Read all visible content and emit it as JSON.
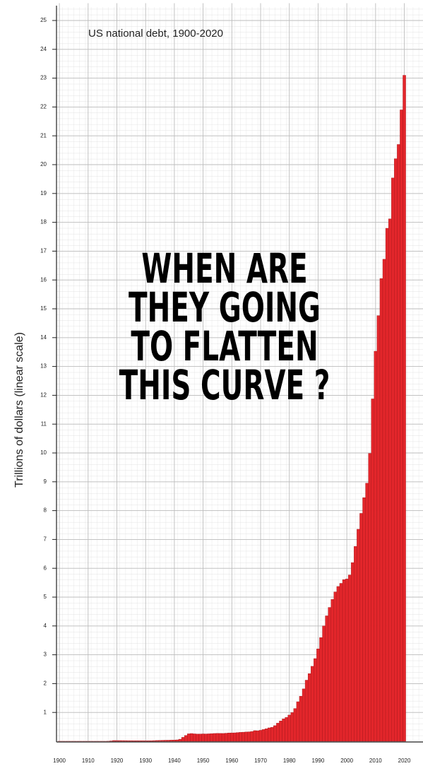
{
  "chart_data": {
    "type": "bar",
    "title": "US national debt, 1900-2020",
    "y_label": "Trillions of dollars (linear scale)",
    "annotation": [
      "WHEN ARE",
      "THEY GOING",
      "TO FLATTEN",
      "THIS CURVE ?"
    ],
    "color": "#e3262b",
    "grid": true,
    "xlim": [
      1899,
      2026.5
    ],
    "ylim": [
      0,
      25.6
    ],
    "xticks": [
      1900,
      1910,
      1920,
      1930,
      1940,
      1950,
      1960,
      1970,
      1980,
      1990,
      2000,
      2010,
      2020
    ],
    "yticks": [
      1,
      2,
      3,
      4,
      5,
      6,
      7,
      8,
      9,
      10,
      11,
      12,
      13,
      14,
      15,
      16,
      17,
      18,
      19,
      20,
      21,
      22,
      23,
      24,
      25
    ],
    "x": [
      1900,
      1901,
      1902,
      1903,
      1904,
      1905,
      1906,
      1907,
      1908,
      1909,
      1910,
      1911,
      1912,
      1913,
      1914,
      1915,
      1916,
      1917,
      1918,
      1919,
      1920,
      1921,
      1922,
      1923,
      1924,
      1925,
      1926,
      1927,
      1928,
      1929,
      1930,
      1931,
      1932,
      1933,
      1934,
      1935,
      1936,
      1937,
      1938,
      1939,
      1940,
      1941,
      1942,
      1943,
      1944,
      1945,
      1946,
      1947,
      1948,
      1949,
      1950,
      1951,
      1952,
      1953,
      1954,
      1955,
      1956,
      1957,
      1958,
      1959,
      1960,
      1961,
      1962,
      1963,
      1964,
      1965,
      1966,
      1967,
      1968,
      1969,
      1970,
      1971,
      1972,
      1973,
      1974,
      1975,
      1976,
      1977,
      1978,
      1979,
      1980,
      1981,
      1982,
      1983,
      1984,
      1985,
      1986,
      1987,
      1988,
      1989,
      1990,
      1991,
      1992,
      1993,
      1994,
      1995,
      1996,
      1997,
      1998,
      1999,
      2000,
      2001,
      2002,
      2003,
      2004,
      2005,
      2006,
      2007,
      2008,
      2009,
      2010,
      2011,
      2012,
      2013,
      2014,
      2015,
      2016,
      2017,
      2018,
      2019,
      2020
    ],
    "values": [
      0.001,
      0.001,
      0.001,
      0.001,
      0.001,
      0.001,
      0.001,
      0.001,
      0.001,
      0.001,
      0.001,
      0.001,
      0.001,
      0.001,
      0.001,
      0.001,
      0.001,
      0.003,
      0.012,
      0.025,
      0.024,
      0.024,
      0.023,
      0.022,
      0.021,
      0.02,
      0.019,
      0.018,
      0.018,
      0.017,
      0.016,
      0.017,
      0.019,
      0.023,
      0.027,
      0.029,
      0.034,
      0.036,
      0.037,
      0.04,
      0.043,
      0.049,
      0.072,
      0.137,
      0.201,
      0.259,
      0.269,
      0.258,
      0.252,
      0.253,
      0.257,
      0.255,
      0.259,
      0.266,
      0.271,
      0.274,
      0.273,
      0.272,
      0.28,
      0.287,
      0.291,
      0.293,
      0.303,
      0.31,
      0.316,
      0.322,
      0.328,
      0.34,
      0.369,
      0.366,
      0.381,
      0.408,
      0.436,
      0.466,
      0.484,
      0.542,
      0.629,
      0.706,
      0.777,
      0.829,
      0.909,
      0.995,
      1.137,
      1.371,
      1.564,
      1.817,
      2.12,
      2.346,
      2.601,
      2.868,
      3.206,
      3.598,
      4.002,
      4.351,
      4.643,
      4.921,
      5.181,
      5.369,
      5.478,
      5.606,
      5.629,
      5.77,
      6.198,
      6.76,
      7.355,
      7.905,
      8.451,
      8.951,
      9.986,
      11.876,
      13.529,
      14.764,
      16.051,
      16.719,
      17.794,
      18.12,
      19.539,
      20.206,
      20.7,
      21.9,
      23.1
    ]
  }
}
